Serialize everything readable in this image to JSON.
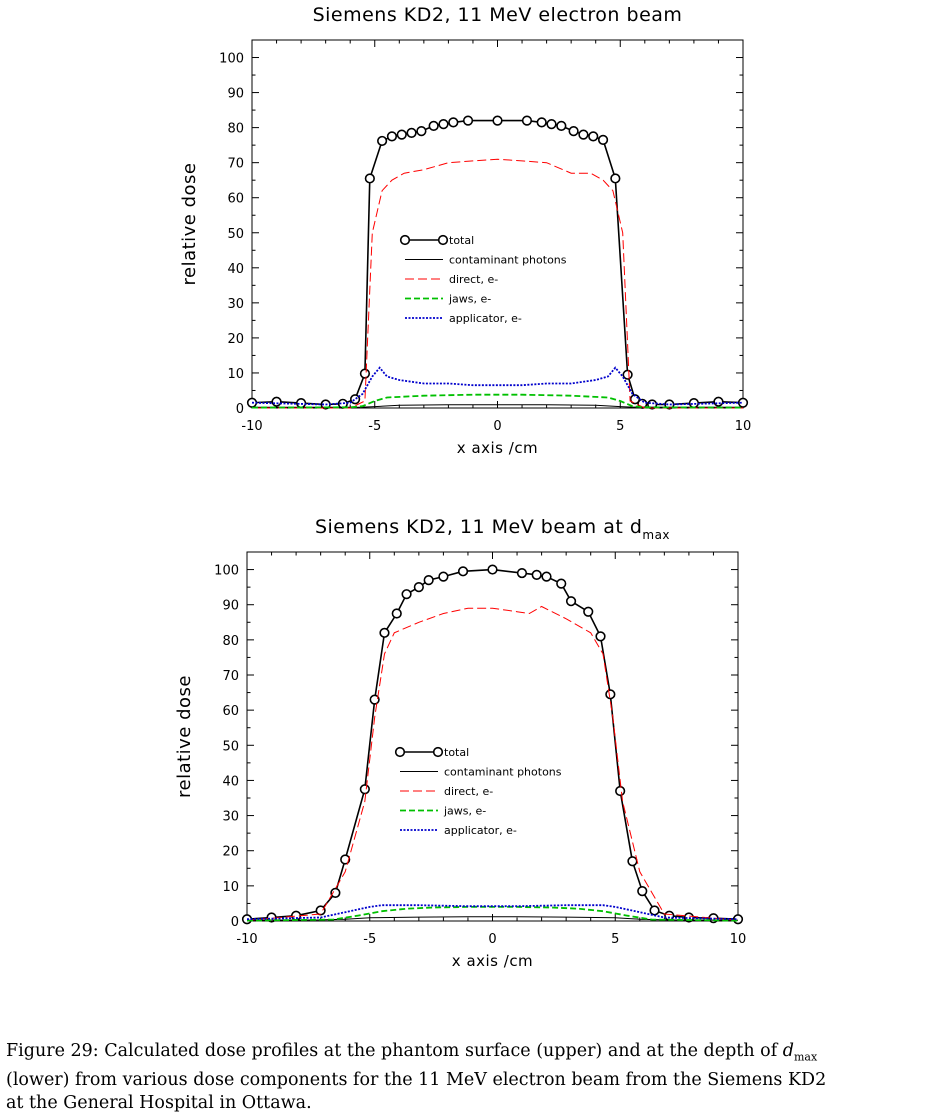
{
  "chart_data": [
    {
      "type": "line",
      "title": "Siemens KD2, 11 MeV electron beam",
      "title_sub": "",
      "xlabel": "x axis /cm",
      "ylabel": "relative dose",
      "xlim": [
        -10,
        10
      ],
      "ylim": [
        0,
        105
      ],
      "xticks": [
        -10,
        -5,
        0,
        5,
        10
      ],
      "yticks": [
        0,
        10,
        20,
        30,
        40,
        50,
        60,
        70,
        80,
        90,
        100
      ],
      "legend_position": "center",
      "grid": false,
      "series": [
        {
          "name": "total",
          "color": "#000000",
          "marker": "circle",
          "x": [
            -10,
            -9,
            -8,
            -7,
            -6.3,
            -5.8,
            -5.4,
            -5.2,
            -4.7,
            -4.3,
            -3.9,
            -3.5,
            -3.1,
            -2.6,
            -2.2,
            -1.8,
            -1.2,
            0,
            1.2,
            1.8,
            2.2,
            2.6,
            3.1,
            3.5,
            3.9,
            4.3,
            4.8,
            5.3,
            5.6,
            5.9,
            6.3,
            7,
            8,
            9,
            10
          ],
          "y": [
            1.5,
            1.8,
            1.4,
            1,
            1.2,
            2.5,
            9.8,
            65.5,
            76.2,
            77.5,
            78,
            78.5,
            79,
            80.5,
            81,
            81.5,
            82,
            82,
            82,
            81.5,
            81,
            80.5,
            79,
            78,
            77.5,
            76.5,
            65.5,
            9.5,
            2.5,
            1.2,
            1,
            1,
            1.4,
            1.8,
            1.5
          ]
        },
        {
          "name": "contaminant photons",
          "color": "#000000",
          "x": [
            -10,
            -5.5,
            -5,
            -4,
            -2,
            0,
            2,
            4,
            5,
            5.5,
            10
          ],
          "y": [
            0.2,
            0.25,
            0.4,
            0.8,
            0.9,
            0.95,
            0.9,
            0.8,
            0.4,
            0.25,
            0.2
          ]
        },
        {
          "name": "direct, e-",
          "color": "#ff0000",
          "x": [
            -10,
            -6,
            -5.4,
            -5.1,
            -4.7,
            -4.3,
            -3.8,
            -3,
            -2,
            -1,
            0,
            1,
            2,
            3,
            3.8,
            4.3,
            4.7,
            5.1,
            5.4,
            6,
            10
          ],
          "y": [
            0,
            0,
            2,
            50,
            62,
            65,
            67,
            68,
            70,
            70.5,
            71,
            70.5,
            70,
            67,
            67,
            65,
            62,
            50,
            2,
            0,
            0
          ]
        },
        {
          "name": "jaws, e-",
          "color": "#00c000",
          "x": [
            -10,
            -6,
            -5.5,
            -5,
            -4.5,
            -3,
            -1,
            0,
            1,
            3,
            4.5,
            5,
            5.5,
            6,
            10
          ],
          "y": [
            0.1,
            0.2,
            0.5,
            2,
            3,
            3.5,
            3.8,
            3.8,
            3.8,
            3.5,
            3,
            2,
            0.5,
            0.2,
            0.1
          ]
        },
        {
          "name": "applicator, e-",
          "color": "#0000cc",
          "x": [
            -10,
            -7,
            -6,
            -5.5,
            -5.1,
            -4.8,
            -4.5,
            -4,
            -3,
            -2,
            -1,
            0,
            1,
            2,
            3,
            4,
            4.5,
            4.8,
            5.1,
            5.5,
            6,
            7,
            10
          ],
          "y": [
            1.5,
            1,
            1.5,
            4,
            9,
            11.5,
            9,
            8,
            7,
            7,
            6.5,
            6.5,
            6.5,
            7,
            7,
            8,
            9,
            11.5,
            9,
            4,
            1.5,
            1,
            1.5
          ]
        }
      ]
    },
    {
      "type": "line",
      "title": "Siemens KD2, 11 MeV beam at d",
      "title_sub": "max",
      "xlabel": "x axis /cm",
      "ylabel": "relative dose",
      "xlim": [
        -10,
        10
      ],
      "ylim": [
        0,
        105
      ],
      "xticks": [
        -10,
        -5,
        0,
        5,
        10
      ],
      "yticks": [
        0,
        10,
        20,
        30,
        40,
        50,
        60,
        70,
        80,
        90,
        100
      ],
      "legend_position": "center",
      "grid": false,
      "series": [
        {
          "name": "total",
          "color": "#000000",
          "marker": "circle",
          "x": [
            -10,
            -9,
            -8,
            -7,
            -6.4,
            -6,
            -5.2,
            -4.8,
            -4.4,
            -3.9,
            -3.5,
            -3,
            -2.6,
            -2,
            -1.2,
            0,
            1.2,
            1.8,
            2.2,
            2.8,
            3.2,
            3.9,
            4.4,
            4.8,
            5.2,
            5.7,
            6.1,
            6.6,
            7.2,
            8,
            9,
            10
          ],
          "y": [
            0.5,
            1,
            1.5,
            3,
            8,
            17.5,
            37.5,
            63,
            82,
            87.5,
            93,
            95,
            97,
            98,
            99.5,
            100,
            99,
            98.5,
            98,
            96,
            91,
            88,
            81,
            64.5,
            37,
            17,
            8.5,
            3,
            1.5,
            1,
            0.8,
            0.5
          ]
        },
        {
          "name": "contaminant photons",
          "color": "#000000",
          "x": [
            -10,
            -7,
            -6,
            -5,
            -3,
            -1,
            0,
            1,
            3,
            5,
            6,
            7,
            10
          ],
          "y": [
            0.2,
            0.3,
            0.5,
            0.9,
            1.1,
            1.2,
            1.2,
            1.2,
            1.1,
            0.9,
            0.5,
            0.3,
            0.2
          ]
        },
        {
          "name": "direct, e-",
          "color": "#ff0000",
          "x": [
            -10,
            -7,
            -6,
            -5.2,
            -4.8,
            -4.4,
            -4,
            -3,
            -2,
            -1,
            0,
            1,
            1.5,
            2,
            3,
            4,
            4.5,
            4.9,
            5.3,
            6,
            7,
            10
          ],
          "y": [
            0.2,
            2,
            14,
            34,
            58,
            76,
            82,
            85,
            87.5,
            89,
            89,
            88,
            87.5,
            89.5,
            86,
            82,
            76,
            58,
            34,
            14,
            2,
            0.2
          ]
        },
        {
          "name": "jaws, e-",
          "color": "#00c000",
          "x": [
            -10,
            -6.5,
            -5.5,
            -4.5,
            -3.5,
            -2.5,
            -1,
            0,
            1,
            2.5,
            3.5,
            4.5,
            5.5,
            6.5,
            10
          ],
          "y": [
            0.1,
            0.4,
            1.5,
            2.8,
            3.5,
            3.8,
            4,
            4,
            4,
            3.8,
            3.5,
            2.8,
            1.5,
            0.4,
            0.1
          ]
        },
        {
          "name": "applicator, e-",
          "color": "#0000cc",
          "x": [
            -10,
            -7,
            -6,
            -5,
            -4.5,
            -3,
            -1,
            0,
            1,
            3,
            4.5,
            5,
            6,
            7,
            10
          ],
          "y": [
            0.5,
            1,
            2.5,
            4,
            4.5,
            4.5,
            4.2,
            4.2,
            4.2,
            4.5,
            4.5,
            4,
            2.5,
            1,
            0.5
          ]
        }
      ]
    }
  ],
  "caption": {
    "line1_prefix": "Figure 29: Calculated dose profiles at the phantom surface (upper) and at the depth of ",
    "math_symbol": "d",
    "math_sub": "max",
    "line2": "(lower) from various dose components for the 11 MeV electron beam from the Siemens KD2",
    "line3": "at the General Hospital in Ottawa."
  }
}
